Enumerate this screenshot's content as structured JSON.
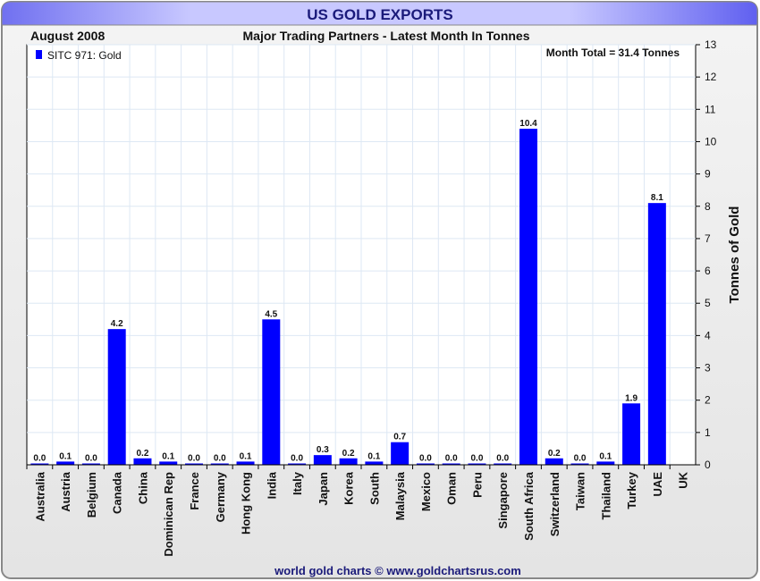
{
  "chart_data": {
    "type": "bar",
    "title": "US GOLD EXPORTS",
    "subtitle": "Major Trading Partners - Latest Month In Tonnes",
    "period": "August 2008",
    "annotation": "Month Total = 31.4 Tonnes",
    "legend": "SITC 971: Gold",
    "legend_position": "top-left",
    "ylabel": "Tonnes of Gold",
    "ylim": [
      0,
      13
    ],
    "yticks": [
      0,
      1,
      2,
      3,
      4,
      5,
      6,
      7,
      8,
      9,
      10,
      11,
      12,
      13
    ],
    "grid": true,
    "footer": "world gold charts © www.goldchartsrus.com",
    "bar_color": "#0000ff",
    "categories": [
      "Australia",
      "Austria",
      "Belgium",
      "Canada",
      "China",
      "Dominican Rep",
      "France",
      "Germany",
      "Hong Kong",
      "India",
      "Italy",
      "Japan",
      "Korea",
      "South",
      "Malaysia",
      "Mexico",
      "Oman",
      "Peru",
      "Singapore",
      "South Africa",
      "Switzerland",
      "Taiwan",
      "Thailand",
      "Turkey",
      "UAE",
      "UK"
    ],
    "values": [
      0.0,
      0.1,
      0.0,
      4.2,
      0.2,
      0.1,
      0.0,
      0.0,
      0.1,
      4.5,
      0.0,
      0.3,
      0.2,
      0.1,
      0.7,
      0.0,
      0.0,
      0.0,
      0.0,
      10.4,
      0.2,
      0.0,
      0.1,
      1.9,
      8.1,
      null
    ],
    "value_labels": [
      "0.0",
      "0.1",
      "0.0",
      "4.2",
      "0.2",
      "0.1",
      "0.0",
      "0.0",
      "0.1",
      "4.5",
      "0.0",
      "0.3",
      "0.2",
      "0.1",
      "0.7",
      "0.0",
      "0.0",
      "0.0",
      "0.0",
      "10.4",
      "0.2",
      "0.0",
      "0.1",
      "1.9",
      "8.1",
      ""
    ]
  }
}
